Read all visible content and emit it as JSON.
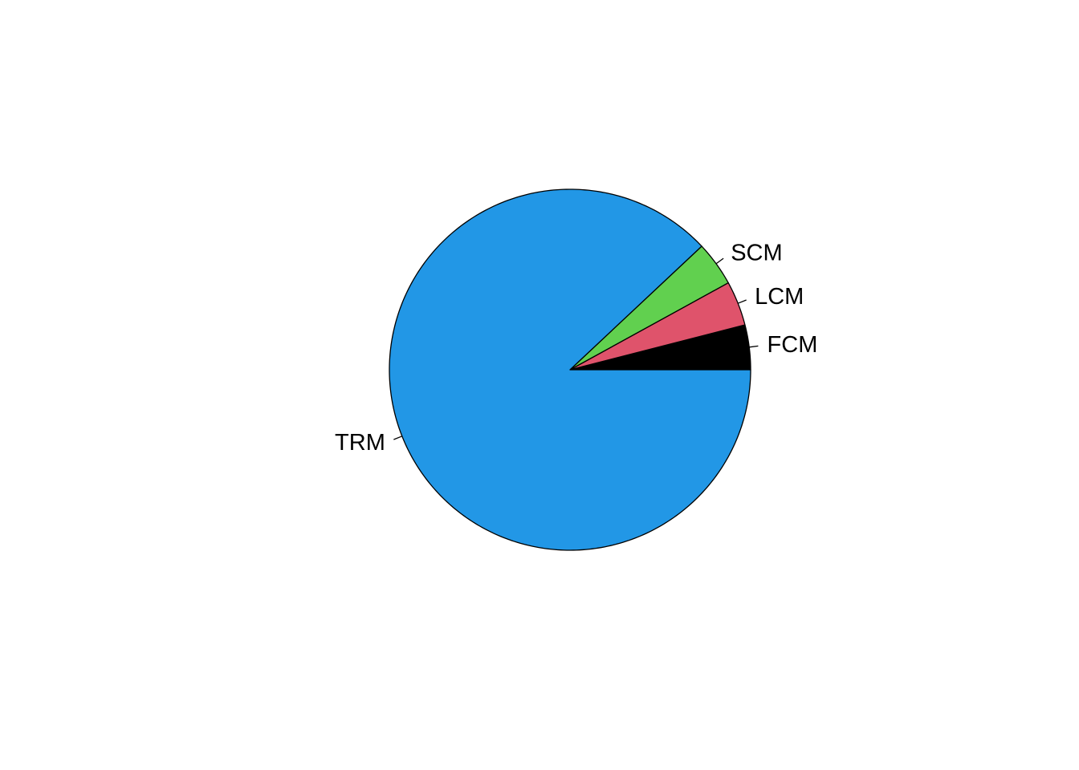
{
  "chart_data": {
    "type": "pie",
    "title": "",
    "start_angle_deg": 0,
    "direction": "counterclockwise",
    "slices": [
      {
        "label": "FCM",
        "value": 4.0,
        "color": "#000000"
      },
      {
        "label": "LCM",
        "value": 4.0,
        "color": "#DF536B"
      },
      {
        "label": "SCM",
        "value": 4.0,
        "color": "#61D04F"
      },
      {
        "label": "TRM",
        "value": 88.0,
        "color": "#2297E6"
      }
    ]
  }
}
